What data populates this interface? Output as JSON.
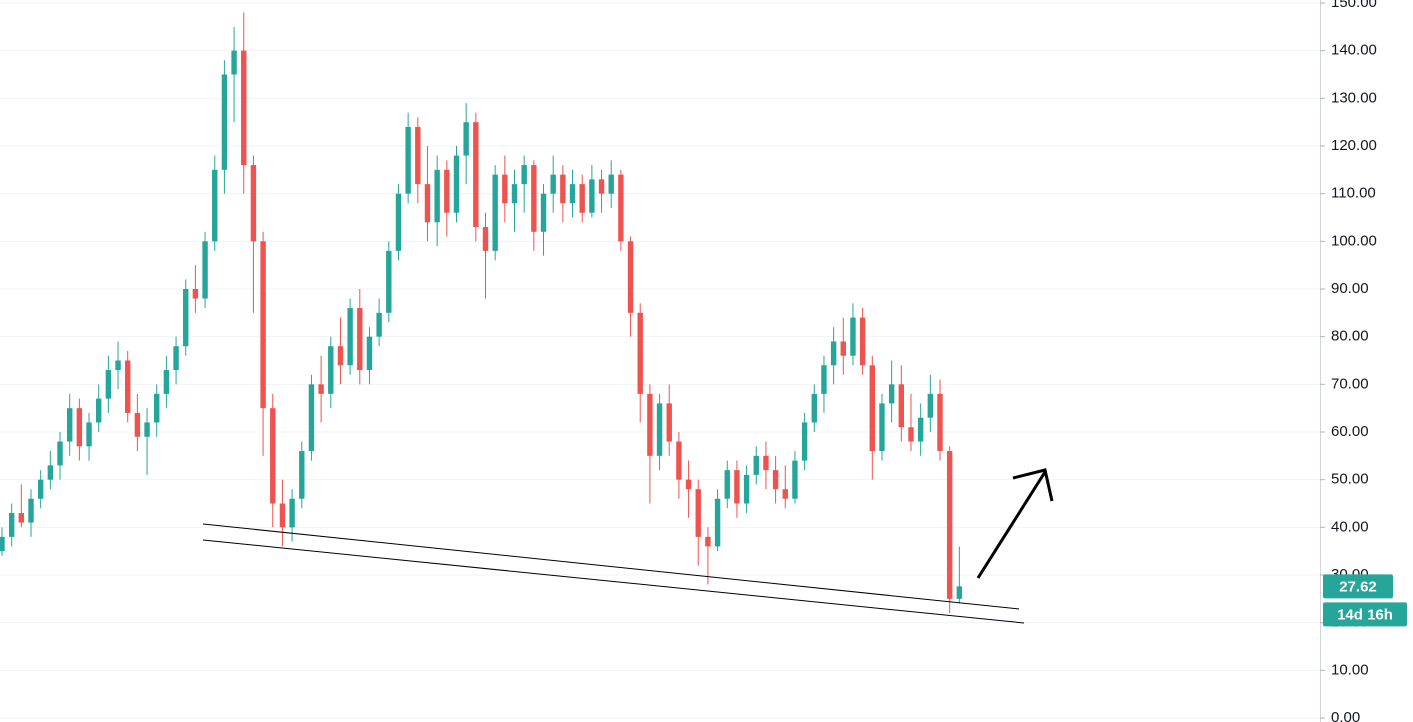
{
  "chart_data": {
    "type": "candlestick",
    "up_color": "#26a69a",
    "down_color": "#ef5350",
    "ylim": [
      0,
      150
    ],
    "yticks": [
      {
        "value": 0,
        "label": "0.00"
      },
      {
        "value": 10,
        "label": "10.00"
      },
      {
        "value": 20,
        "label": "20.00"
      },
      {
        "value": 30,
        "label": "30.00"
      },
      {
        "value": 40,
        "label": "40.00"
      },
      {
        "value": 50,
        "label": "50.00"
      },
      {
        "value": 60,
        "label": "60.00"
      },
      {
        "value": 70,
        "label": "70.00"
      },
      {
        "value": 80,
        "label": "80.00"
      },
      {
        "value": 90,
        "label": "90.00"
      },
      {
        "value": 100,
        "label": "100.00"
      },
      {
        "value": 110,
        "label": "110.00"
      },
      {
        "value": 120,
        "label": "120.00"
      },
      {
        "value": 130,
        "label": "130.00"
      },
      {
        "value": 140,
        "label": "140.00"
      },
      {
        "value": 150,
        "label": "150.00"
      }
    ],
    "grid": true,
    "countdown": "14d 16h",
    "ohlc": [
      [
        35,
        40,
        34,
        38
      ],
      [
        38,
        45,
        36,
        43
      ],
      [
        43,
        49,
        40,
        41
      ],
      [
        41,
        48,
        38,
        46
      ],
      [
        46,
        52,
        44,
        50
      ],
      [
        50,
        56,
        48,
        53
      ],
      [
        53,
        60,
        50,
        58
      ],
      [
        58,
        68,
        55,
        65
      ],
      [
        65,
        67,
        54,
        57
      ],
      [
        57,
        64,
        54,
        62
      ],
      [
        62,
        70,
        60,
        67
      ],
      [
        67,
        76,
        64,
        73
      ],
      [
        73,
        79,
        69,
        75
      ],
      [
        75,
        77,
        62,
        64
      ],
      [
        64,
        68,
        56,
        59
      ],
      [
        59,
        65,
        51,
        62
      ],
      [
        62,
        70,
        59,
        68
      ],
      [
        68,
        76,
        65,
        73
      ],
      [
        73,
        80,
        70,
        78
      ],
      [
        78,
        92,
        76,
        90
      ],
      [
        90,
        95,
        85,
        88
      ],
      [
        88,
        102,
        86,
        100
      ],
      [
        100,
        118,
        98,
        115
      ],
      [
        115,
        138,
        110,
        135
      ],
      [
        135,
        145,
        125,
        140
      ],
      [
        140,
        148,
        110,
        116
      ],
      [
        116,
        118,
        85,
        100
      ],
      [
        100,
        102,
        55,
        65
      ],
      [
        65,
        68,
        40,
        45
      ],
      [
        45,
        50,
        36,
        40
      ],
      [
        40,
        48,
        37,
        46
      ],
      [
        46,
        58,
        44,
        56
      ],
      [
        56,
        72,
        54,
        70
      ],
      [
        70,
        76,
        62,
        68
      ],
      [
        68,
        80,
        65,
        78
      ],
      [
        78,
        84,
        70,
        74
      ],
      [
        74,
        88,
        72,
        86
      ],
      [
        86,
        90,
        70,
        73
      ],
      [
        73,
        82,
        70,
        80
      ],
      [
        80,
        88,
        78,
        85
      ],
      [
        85,
        100,
        83,
        98
      ],
      [
        98,
        112,
        96,
        110
      ],
      [
        110,
        127,
        108,
        124
      ],
      [
        124,
        126,
        108,
        112
      ],
      [
        112,
        120,
        100,
        104
      ],
      [
        104,
        118,
        99,
        115
      ],
      [
        115,
        117,
        101,
        106
      ],
      [
        106,
        120,
        104,
        118
      ],
      [
        118,
        129,
        112,
        125
      ],
      [
        125,
        127,
        100,
        103
      ],
      [
        103,
        106,
        88,
        98
      ],
      [
        98,
        116,
        96,
        114
      ],
      [
        114,
        118,
        104,
        108
      ],
      [
        108,
        115,
        102,
        112
      ],
      [
        112,
        118,
        106,
        116
      ],
      [
        116,
        117,
        98,
        102
      ],
      [
        102,
        112,
        97,
        110
      ],
      [
        110,
        118,
        106,
        114
      ],
      [
        114,
        116,
        104,
        108
      ],
      [
        108,
        115,
        105,
        112
      ],
      [
        112,
        114,
        104,
        106
      ],
      [
        106,
        116,
        105,
        113
      ],
      [
        113,
        115,
        106,
        110
      ],
      [
        110,
        117,
        107,
        114
      ],
      [
        114,
        115,
        98,
        100
      ],
      [
        100,
        101,
        80,
        85
      ],
      [
        85,
        87,
        62,
        68
      ],
      [
        68,
        70,
        45,
        55
      ],
      [
        55,
        68,
        52,
        66
      ],
      [
        66,
        70,
        55,
        58
      ],
      [
        58,
        60,
        46,
        50
      ],
      [
        50,
        54,
        42,
        48
      ],
      [
        48,
        50,
        32,
        38
      ],
      [
        38,
        40,
        28,
        36
      ],
      [
        36,
        48,
        35,
        46
      ],
      [
        46,
        54,
        44,
        52
      ],
      [
        52,
        54,
        42,
        45
      ],
      [
        45,
        53,
        43,
        51
      ],
      [
        51,
        57,
        49,
        55
      ],
      [
        55,
        58,
        48,
        52
      ],
      [
        52,
        55,
        45,
        48
      ],
      [
        48,
        53,
        44,
        46
      ],
      [
        46,
        56,
        45,
        54
      ],
      [
        54,
        64,
        52,
        62
      ],
      [
        62,
        70,
        60,
        68
      ],
      [
        68,
        76,
        64,
        74
      ],
      [
        74,
        82,
        70,
        79
      ],
      [
        79,
        84,
        72,
        76
      ],
      [
        76,
        87,
        74,
        84
      ],
      [
        84,
        86,
        72,
        74
      ],
      [
        74,
        76,
        50,
        56
      ],
      [
        56,
        68,
        54,
        66
      ],
      [
        66,
        75,
        62,
        70
      ],
      [
        70,
        74,
        58,
        61
      ],
      [
        61,
        68,
        56,
        58
      ],
      [
        58,
        66,
        55,
        63
      ],
      [
        63,
        72,
        60,
        68
      ],
      [
        68,
        71,
        54,
        56
      ],
      [
        56,
        57,
        22,
        25
      ],
      [
        25,
        36,
        24,
        27.62
      ]
    ]
  }
}
